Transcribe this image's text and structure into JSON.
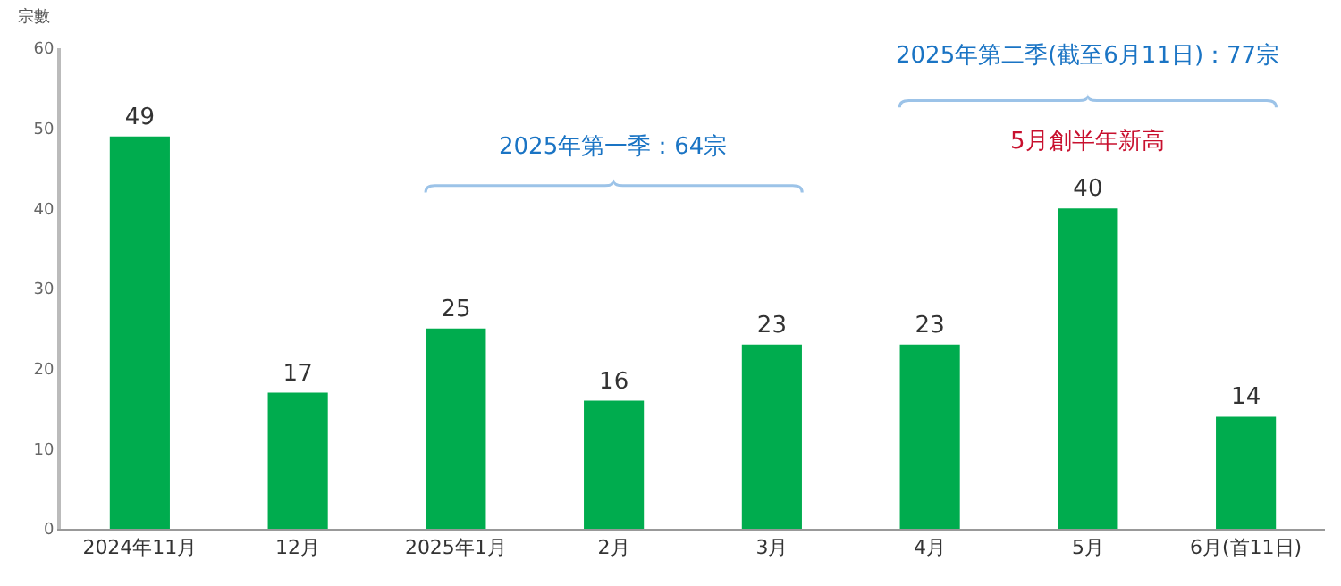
{
  "chart_data": {
    "type": "bar",
    "ylabel": "宗數",
    "categories": [
      "2024年11月",
      "12月",
      "2025年1月",
      "2月",
      "3月",
      "4月",
      "5月",
      "6月(首11日)"
    ],
    "values": [
      49,
      17,
      25,
      16,
      23,
      23,
      40,
      14
    ],
    "color": "#00ac4e",
    "ylim": [
      0,
      60
    ],
    "yticks": [
      0,
      10,
      20,
      30,
      40,
      50,
      60
    ],
    "grid": false,
    "legend": false,
    "data_labels": true,
    "annotations": [
      "2025年第一季：64宗",
      "2025年第二季(截至6月11日)：77宗",
      "5月創半年新高"
    ]
  }
}
